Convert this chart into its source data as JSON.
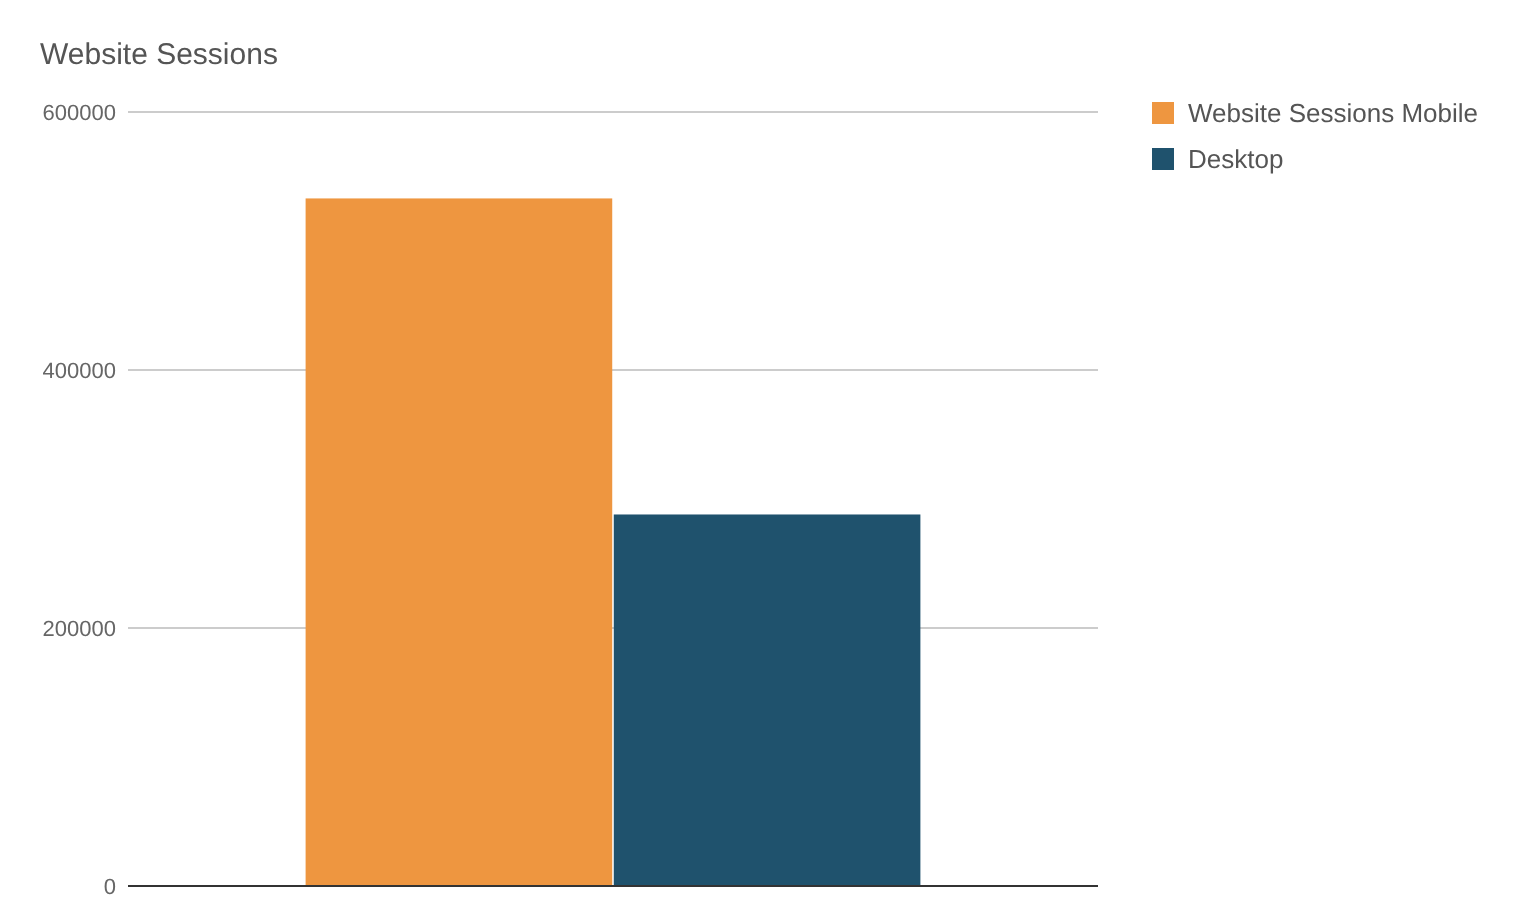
{
  "chart_data": {
    "type": "bar",
    "title": "Website Sessions",
    "categories": [
      null
    ],
    "series": [
      {
        "name": "Website Sessions Mobile",
        "color": "#ee9640",
        "values": [
          533000
        ]
      },
      {
        "name": "Desktop",
        "color": "#1f526d",
        "values": [
          288000
        ]
      }
    ],
    "ylim": [
      0,
      600000
    ],
    "yticks": [
      0,
      200000,
      400000,
      600000
    ],
    "grid": "y",
    "legend": "right"
  }
}
